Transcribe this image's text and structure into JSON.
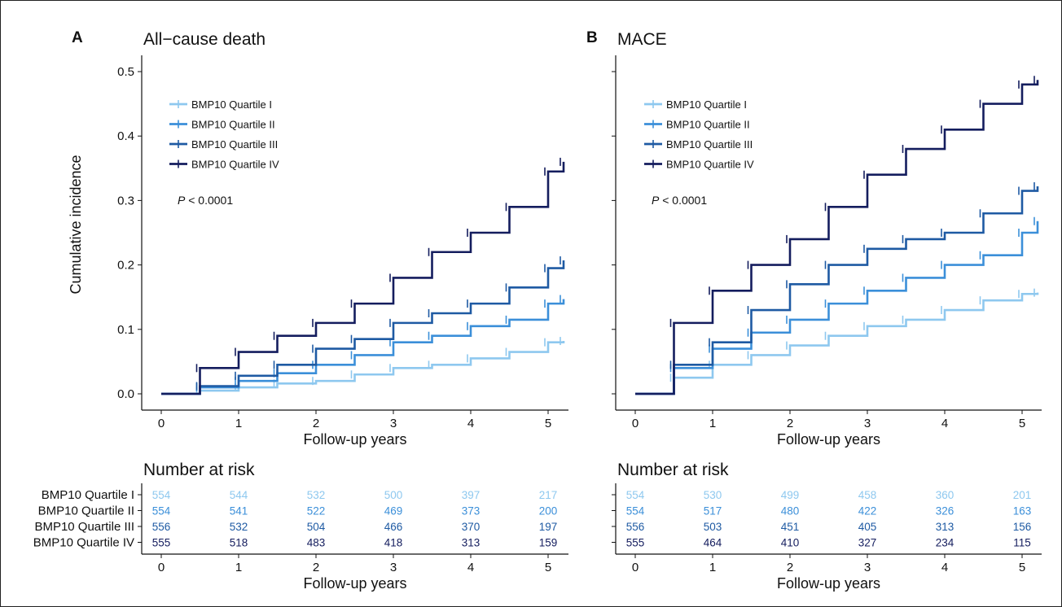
{
  "chart_data": [
    {
      "type": "line",
      "panel_letter": "A",
      "title": "All−cause death",
      "xlabel": "Follow-up years",
      "ylabel": "Cumulative incidence",
      "xlim": [
        0,
        5.2
      ],
      "ylim": [
        0,
        0.5
      ],
      "x_ticks": [
        "0",
        "1",
        "2",
        "3",
        "4",
        "5"
      ],
      "y_ticks": [
        "0.0",
        "0.1",
        "0.2",
        "0.3",
        "0.4",
        "0.5"
      ],
      "legend_position": "top-left",
      "p_value_text": "< 0.0001",
      "series": [
        {
          "name": "BMP10 Quartile I",
          "color": "#8ec8ef",
          "x": [
            0,
            0.5,
            1,
            1.5,
            2,
            2.5,
            3,
            3.5,
            4,
            4.5,
            5,
            5.2
          ],
          "y": [
            0,
            0.005,
            0.01,
            0.016,
            0.02,
            0.03,
            0.04,
            0.045,
            0.055,
            0.065,
            0.08,
            0.082
          ]
        },
        {
          "name": "BMP10 Quartile II",
          "color": "#3b8fd9",
          "x": [
            0,
            0.5,
            1,
            1.5,
            2,
            2.5,
            3,
            3.5,
            4,
            4.5,
            5,
            5.2
          ],
          "y": [
            0,
            0.01,
            0.02,
            0.032,
            0.045,
            0.06,
            0.08,
            0.09,
            0.105,
            0.115,
            0.14,
            0.147
          ]
        },
        {
          "name": "BMP10 Quartile III",
          "color": "#1e5aa3",
          "x": [
            0,
            0.5,
            1,
            1.5,
            2,
            2.5,
            3,
            3.5,
            4,
            4.5,
            5,
            5.2
          ],
          "y": [
            0,
            0.012,
            0.028,
            0.045,
            0.07,
            0.085,
            0.11,
            0.125,
            0.14,
            0.165,
            0.195,
            0.207
          ]
        },
        {
          "name": "BMP10 Quartile IV",
          "color": "#141d5e",
          "x": [
            0,
            0.5,
            1,
            1.5,
            2,
            2.5,
            3,
            3.5,
            4,
            4.5,
            5,
            5.2
          ],
          "y": [
            0,
            0.04,
            0.065,
            0.09,
            0.11,
            0.14,
            0.18,
            0.22,
            0.25,
            0.29,
            0.345,
            0.36
          ]
        }
      ]
    },
    {
      "type": "line",
      "panel_letter": "B",
      "title": "MACE",
      "xlabel": "Follow-up years",
      "ylabel": "",
      "xlim": [
        0,
        5.2
      ],
      "ylim": [
        0,
        0.5
      ],
      "x_ticks": [
        "0",
        "1",
        "2",
        "3",
        "4",
        "5"
      ],
      "y_ticks": [],
      "legend_position": "top-left",
      "p_value_text": "< 0.0001",
      "series": [
        {
          "name": "BMP10 Quartile I",
          "color": "#8ec8ef",
          "x": [
            0,
            0.5,
            1,
            1.5,
            2,
            2.5,
            3,
            3.5,
            4,
            4.5,
            5,
            5.2
          ],
          "y": [
            0,
            0.025,
            0.045,
            0.06,
            0.075,
            0.09,
            0.105,
            0.115,
            0.13,
            0.145,
            0.155,
            0.157
          ]
        },
        {
          "name": "BMP10 Quartile II",
          "color": "#3b8fd9",
          "x": [
            0,
            0.5,
            1,
            1.5,
            2,
            2.5,
            3,
            3.5,
            4,
            4.5,
            5,
            5.2
          ],
          "y": [
            0,
            0.04,
            0.07,
            0.095,
            0.115,
            0.14,
            0.16,
            0.18,
            0.2,
            0.215,
            0.25,
            0.268
          ]
        },
        {
          "name": "BMP10 Quartile III",
          "color": "#1e5aa3",
          "x": [
            0,
            0.5,
            1,
            1.5,
            2,
            2.5,
            3,
            3.5,
            4,
            4.5,
            5,
            5.2
          ],
          "y": [
            0,
            0.045,
            0.08,
            0.13,
            0.17,
            0.2,
            0.225,
            0.24,
            0.25,
            0.28,
            0.315,
            0.322
          ]
        },
        {
          "name": "BMP10 Quartile IV",
          "color": "#141d5e",
          "x": [
            0,
            0.5,
            1,
            1.5,
            2,
            2.5,
            3,
            3.5,
            4,
            4.5,
            5,
            5.2
          ],
          "y": [
            0,
            0.11,
            0.16,
            0.2,
            0.24,
            0.29,
            0.34,
            0.38,
            0.41,
            0.45,
            0.48,
            0.487
          ]
        }
      ]
    }
  ],
  "risk_tables": [
    {
      "title": "Number at risk",
      "xlabel": "Follow-up years",
      "x_ticks": [
        "0",
        "1",
        "2",
        "3",
        "4",
        "5"
      ],
      "rows": [
        {
          "label": "BMP10 Quartile I",
          "color": "#8ec8ef",
          "values": [
            "554",
            "544",
            "532",
            "500",
            "397",
            "217"
          ]
        },
        {
          "label": "BMP10 Quartile II",
          "color": "#3b8fd9",
          "values": [
            "554",
            "541",
            "522",
            "469",
            "373",
            "200"
          ]
        },
        {
          "label": "BMP10 Quartile III",
          "color": "#1e5aa3",
          "values": [
            "556",
            "532",
            "504",
            "466",
            "370",
            "197"
          ]
        },
        {
          "label": "BMP10 Quartile IV",
          "color": "#141d5e",
          "values": [
            "555",
            "518",
            "483",
            "418",
            "313",
            "159"
          ]
        }
      ]
    },
    {
      "title": "Number at risk",
      "xlabel": "Follow-up years",
      "x_ticks": [
        "0",
        "1",
        "2",
        "3",
        "4",
        "5"
      ],
      "rows": [
        {
          "label": "",
          "color": "#8ec8ef",
          "values": [
            "554",
            "530",
            "499",
            "458",
            "360",
            "201"
          ]
        },
        {
          "label": "",
          "color": "#3b8fd9",
          "values": [
            "554",
            "517",
            "480",
            "422",
            "326",
            "163"
          ]
        },
        {
          "label": "",
          "color": "#1e5aa3",
          "values": [
            "556",
            "503",
            "451",
            "405",
            "313",
            "156"
          ]
        },
        {
          "label": "",
          "color": "#141d5e",
          "values": [
            "555",
            "464",
            "410",
            "327",
            "234",
            "115"
          ]
        }
      ]
    }
  ]
}
